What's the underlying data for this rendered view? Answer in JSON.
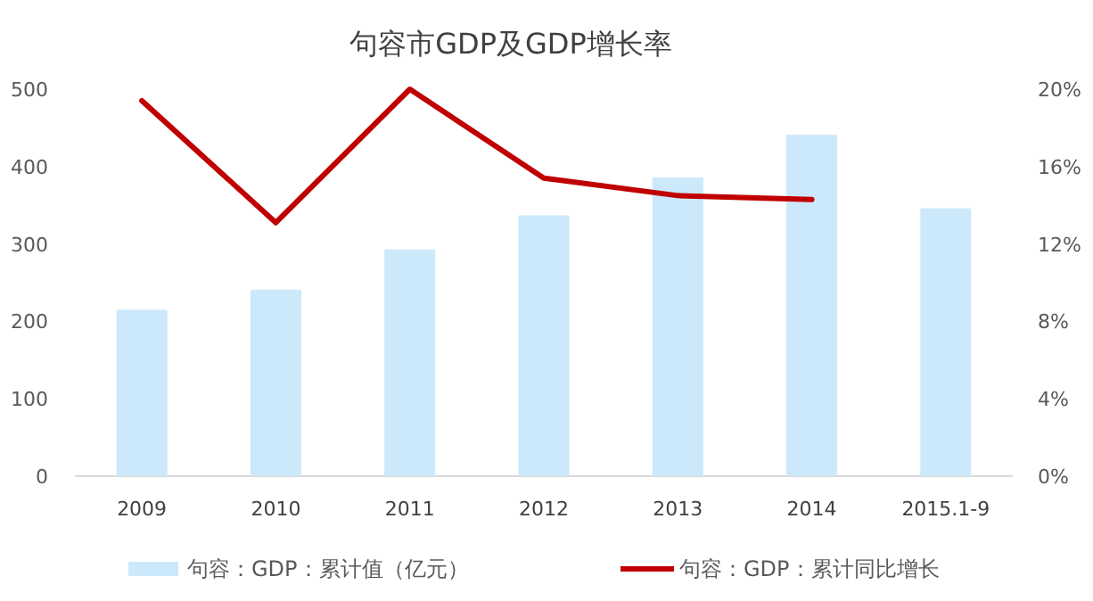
{
  "chart_data": {
    "type": "bar",
    "title": "句容市GDP及GDP增长率",
    "categories": [
      "2009",
      "2010",
      "2011",
      "2012",
      "2013",
      "2014",
      "2015.1-9"
    ],
    "series": [
      {
        "name": "句容：GDP：累计值（亿元）",
        "color": "#cce9fb",
        "values": [
          215,
          241,
          293,
          337,
          386,
          441,
          346
        ]
      },
      {
        "name": "句容：GDP：累计同比增长",
        "color": "#c00000",
        "type": "line",
        "axis": "y2",
        "values": [
          19.4,
          13.1,
          20.0,
          15.4,
          14.5,
          14.3,
          null
        ]
      }
    ],
    "ylim": [
      0,
      500
    ],
    "yticks": [
      0,
      100,
      200,
      300,
      400,
      500
    ],
    "y2lim": [
      0,
      20
    ],
    "y2ticks": [
      {
        "value": 0,
        "label": "0%"
      },
      {
        "value": 4,
        "label": "4%"
      },
      {
        "value": 8,
        "label": "8%"
      },
      {
        "value": 12,
        "label": "12%"
      },
      {
        "value": 16,
        "label": "16%"
      },
      {
        "value": 20,
        "label": "20%"
      }
    ],
    "legend": "bottom",
    "grid": false,
    "marker": "none",
    "line_style": "solid"
  }
}
